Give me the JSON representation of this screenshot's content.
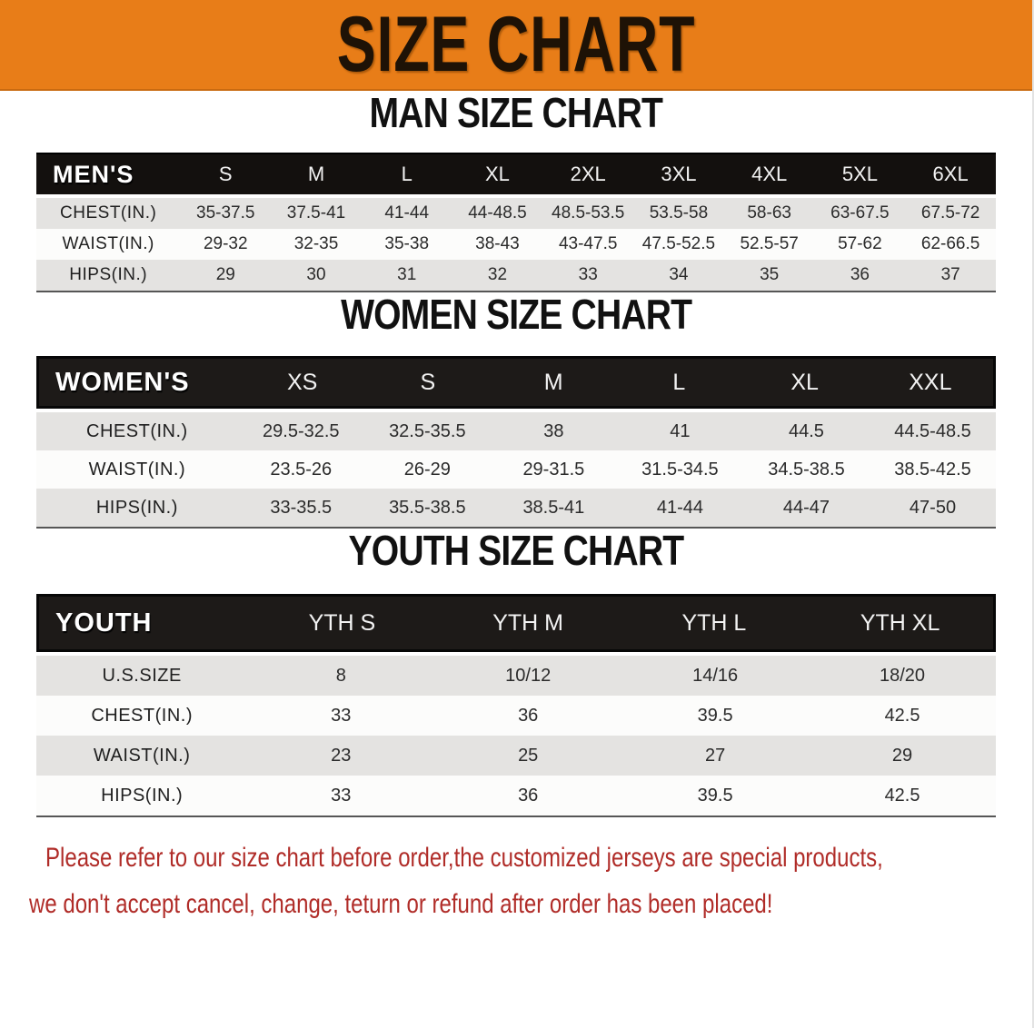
{
  "banner": {
    "title": "SIZE CHART",
    "bg_color": "#e87d18",
    "text_color": "#1e1206"
  },
  "colors": {
    "table_header_bg": "#15120f",
    "row_stripe": "#e4e3e1",
    "row_plain": "#fcfcfb",
    "footer_text": "#b02c28"
  },
  "sections": [
    {
      "heading": "MAN SIZE CHART",
      "header_label": "MEN'S",
      "columns": [
        "S",
        "M",
        "L",
        "XL",
        "2XL",
        "3XL",
        "4XL",
        "5XL",
        "6XL"
      ],
      "rows": [
        {
          "label": "CHEST(IN.)",
          "values": [
            "35-37.5",
            "37.5-41",
            "41-44",
            "44-48.5",
            "48.5-53.5",
            "53.5-58",
            "58-63",
            "63-67.5",
            "67.5-72"
          ]
        },
        {
          "label": "WAIST(IN.)",
          "values": [
            "29-32",
            "32-35",
            "35-38",
            "38-43",
            "43-47.5",
            "47.5-52.5",
            "52.5-57",
            "57-62",
            "62-66.5"
          ]
        },
        {
          "label": "HIPS(IN.)",
          "values": [
            "29",
            "30",
            "31",
            "32",
            "33",
            "34",
            "35",
            "36",
            "37"
          ]
        }
      ]
    },
    {
      "heading": "WOMEN SIZE CHART",
      "header_label": "WOMEN'S",
      "columns": [
        "XS",
        "S",
        "M",
        "L",
        "XL",
        "XXL"
      ],
      "rows": [
        {
          "label": "CHEST(IN.)",
          "values": [
            "29.5-32.5",
            "32.5-35.5",
            "38",
            "41",
            "44.5",
            "44.5-48.5"
          ]
        },
        {
          "label": "WAIST(IN.)",
          "values": [
            "23.5-26",
            "26-29",
            "29-31.5",
            "31.5-34.5",
            "34.5-38.5",
            "38.5-42.5"
          ]
        },
        {
          "label": "HIPS(IN.)",
          "values": [
            "33-35.5",
            "35.5-38.5",
            "38.5-41",
            "41-44",
            "44-47",
            "47-50"
          ]
        }
      ]
    },
    {
      "heading": "YOUTH SIZE CHART",
      "header_label": "YOUTH",
      "columns": [
        "YTH S",
        "YTH M",
        "YTH L",
        "YTH XL"
      ],
      "rows": [
        {
          "label": "U.S.SIZE",
          "values": [
            "8",
            "10/12",
            "14/16",
            "18/20"
          ]
        },
        {
          "label": "CHEST(IN.)",
          "values": [
            "33",
            "36",
            "39.5",
            "42.5"
          ]
        },
        {
          "label": "WAIST(IN.)",
          "values": [
            "23",
            "25",
            "27",
            "29"
          ]
        },
        {
          "label": "HIPS(IN.)",
          "values": [
            "33",
            "36",
            "39.5",
            "42.5"
          ]
        }
      ]
    }
  ],
  "footer": {
    "line1": "Please refer to our size chart before order,the customized jerseys are special products,",
    "line2": "we don't accept cancel, change, teturn or refund after order has been placed!"
  }
}
